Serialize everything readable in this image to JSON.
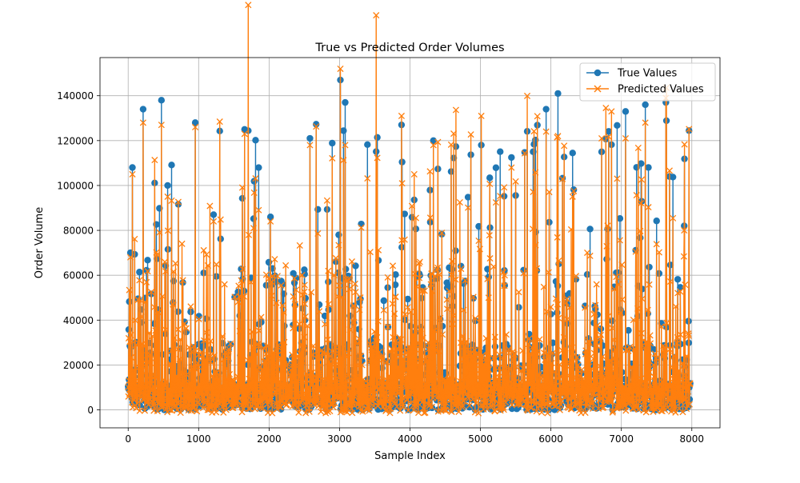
{
  "chart_data": {
    "type": "line",
    "title": "True vs Predicted Order Volumes",
    "xlabel": "Sample Index",
    "ylabel": "Order Volume",
    "xlim": [
      -400,
      8400
    ],
    "ylim": [
      -8000,
      157000
    ],
    "xticks": [
      0,
      1000,
      2000,
      3000,
      4000,
      5000,
      6000,
      7000,
      8000
    ],
    "xtick_labels": [
      "0",
      "1000",
      "2000",
      "3000",
      "4000",
      "5000",
      "6000",
      "7000",
      "8000"
    ],
    "yticks": [
      0,
      20000,
      40000,
      60000,
      80000,
      100000,
      120000,
      140000
    ],
    "ytick_labels": [
      "0",
      "20000",
      "40000",
      "60000",
      "80000",
      "100000",
      "120000",
      "140000"
    ],
    "grid": true,
    "legend_position": "top-right",
    "n_samples": 7980,
    "notable_points": {
      "x": [
        30,
        60,
        210,
        470,
        560,
        950,
        1210,
        1650,
        2020,
        2580,
        3010,
        3080,
        3880,
        4330,
        5010,
        5930,
        6100,
        6720,
        7060,
        7340,
        7630,
        7890
      ],
      "true": [
        70000,
        108000,
        134000,
        138000,
        100000,
        128000,
        87000,
        125000,
        86000,
        121000,
        147000,
        137000,
        127000,
        120000,
        118000,
        134000,
        141000,
        115000,
        133000,
        136000,
        137000,
        82000
      ],
      "predicted": [
        68000,
        105000,
        128000,
        127000,
        95000,
        126000,
        84000,
        123000,
        84000,
        118000,
        152000,
        118000,
        131000,
        118000,
        131000,
        124000,
        122000,
        121000,
        121000,
        128000,
        139000,
        80000
      ]
    },
    "series": [
      {
        "name": "True Values",
        "color": "#1f77b4",
        "marker": "circle"
      },
      {
        "name": "Predicted Values",
        "color": "#ff7f0e",
        "marker": "x"
      }
    ]
  }
}
